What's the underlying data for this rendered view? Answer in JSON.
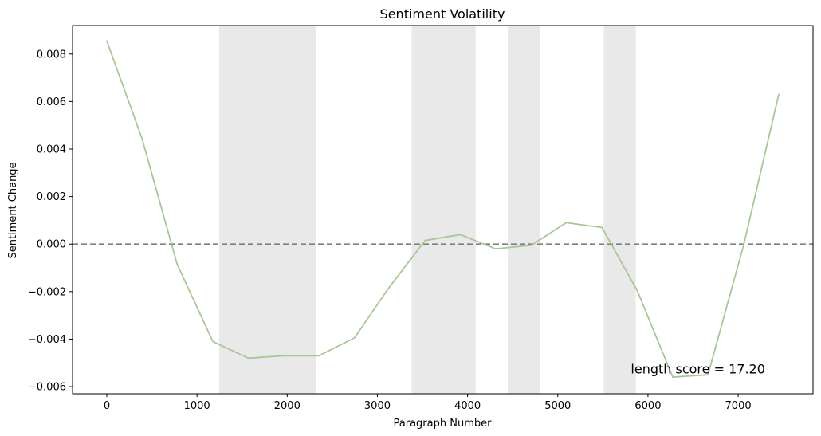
{
  "chart_data": {
    "type": "line",
    "title": "Sentiment Volatility",
    "xlabel": "Paragraph Number",
    "ylabel": "Sentiment Change",
    "xlim": [
      -380,
      7830
    ],
    "ylim": [
      -0.0063,
      0.0092
    ],
    "x_ticks": [
      0,
      1000,
      2000,
      3000,
      4000,
      5000,
      6000,
      7000
    ],
    "y_ticks": [
      -0.006,
      -0.004,
      -0.002,
      0.0,
      0.002,
      0.004,
      0.006,
      0.008
    ],
    "y_tick_labels": [
      "−0.006",
      "−0.004",
      "−0.002",
      "0.000",
      "0.002",
      "0.004",
      "0.006",
      "0.008"
    ],
    "series": [
      {
        "color": "#a9c796",
        "x": [
          0,
          390,
          780,
          1175,
          1570,
          1960,
          2350,
          2745,
          3135,
          3530,
          3920,
          4310,
          4705,
          5095,
          5490,
          5880,
          6275,
          6665,
          7060,
          7450
        ],
        "y": [
          0.00855,
          0.00445,
          -0.00085,
          -0.0041,
          -0.0048,
          -0.0047,
          -0.0047,
          -0.00395,
          -0.0018,
          0.00015,
          0.0004,
          -0.0002,
          -5e-05,
          0.0009,
          0.0007,
          -0.00195,
          -0.0056,
          -0.0055,
          -5e-05,
          0.0063
        ]
      }
    ],
    "reference_line": {
      "y": 0.0,
      "style": "dashed",
      "color": "#808080"
    },
    "shaded_regions": {
      "color": "#d3d3d3",
      "spans": [
        [
          1245,
          1600
        ],
        [
          1600,
          1955
        ],
        [
          1955,
          2315
        ],
        [
          3380,
          3735
        ],
        [
          3735,
          4090
        ],
        [
          4445,
          4800
        ],
        [
          5510,
          5865
        ]
      ]
    },
    "annotation": {
      "text": "length score =  17.20",
      "x": 5810,
      "y": -0.00545
    },
    "grid": false,
    "legend": "none"
  }
}
